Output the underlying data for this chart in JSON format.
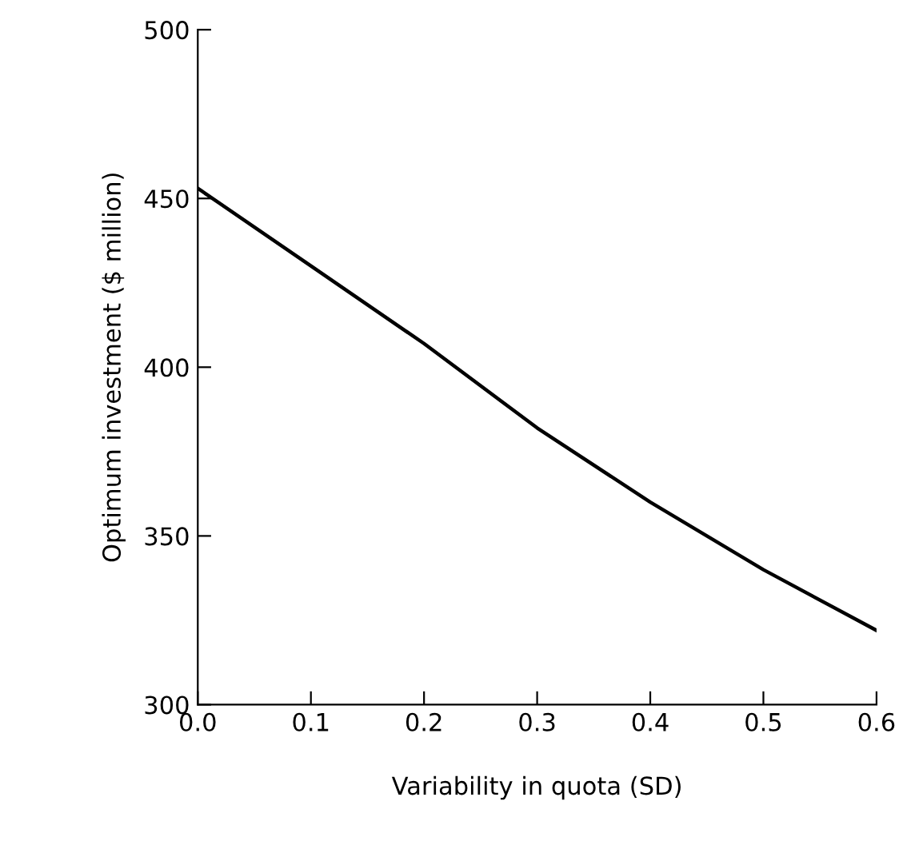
{
  "chart_data": {
    "type": "line",
    "xlabel": "Variability in quota (SD)",
    "ylabel": "Optimum investment ($ million)",
    "x": [
      0.0,
      0.1,
      0.2,
      0.3,
      0.4,
      0.5,
      0.6
    ],
    "series": [
      {
        "color": "#000000",
        "values": [
          453,
          430,
          407,
          382,
          360,
          340,
          322
        ]
      }
    ],
    "xlim": [
      0.0,
      0.6
    ],
    "ylim": [
      300,
      500
    ],
    "xticks": [
      {
        "value": 0.0,
        "label": "0.0"
      },
      {
        "value": 0.1,
        "label": "0.1"
      },
      {
        "value": 0.2,
        "label": "0.2"
      },
      {
        "value": 0.3,
        "label": "0.3"
      },
      {
        "value": 0.4,
        "label": "0.4"
      },
      {
        "value": 0.5,
        "label": "0.5"
      },
      {
        "value": 0.6,
        "label": "0.6"
      }
    ],
    "yticks": [
      300,
      350,
      400,
      450,
      500
    ],
    "grid": false,
    "marker": "none",
    "line_style": "solid"
  }
}
